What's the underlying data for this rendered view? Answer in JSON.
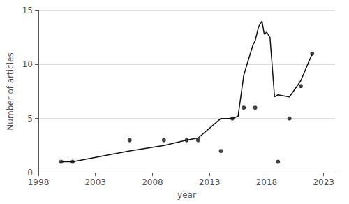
{
  "chart_data": {
    "type": "scatter",
    "xlabel": "year",
    "ylabel": "Number of articles",
    "xlim": [
      1998,
      2024
    ],
    "ylim": [
      0,
      15
    ],
    "xticks": [
      1998,
      2003,
      2008,
      2013,
      2018,
      2023
    ],
    "yticks": [
      0,
      5,
      10,
      15
    ],
    "grid": true,
    "series": [
      {
        "type": "scatter",
        "color": "#111111",
        "x": [
          2000,
          2001,
          2006,
          2009,
          2011,
          2012,
          2014,
          2015,
          2016,
          2017,
          2019,
          2020,
          2021,
          2022
        ],
        "values": [
          1,
          1,
          3,
          3,
          3,
          3,
          2,
          5,
          6,
          6,
          1,
          5,
          8,
          11
        ]
      },
      {
        "type": "line",
        "color": "#111111",
        "x": [
          2000,
          2001,
          2006,
          2009,
          2011,
          2012,
          2014,
          2015,
          2015.5,
          2016,
          2016.8,
          2017.0,
          2017.3,
          2017.6,
          2017.8,
          2018.0,
          2018.3,
          2018.7,
          2019.0,
          2020,
          2021,
          2022
        ],
        "values": [
          1,
          1,
          2,
          2.5,
          3,
          3.2,
          5,
          5,
          5.2,
          9,
          11.8,
          12.2,
          13.5,
          14.0,
          12.8,
          13.0,
          12.5,
          7.0,
          7.2,
          7.0,
          8.5,
          11
        ]
      }
    ]
  }
}
